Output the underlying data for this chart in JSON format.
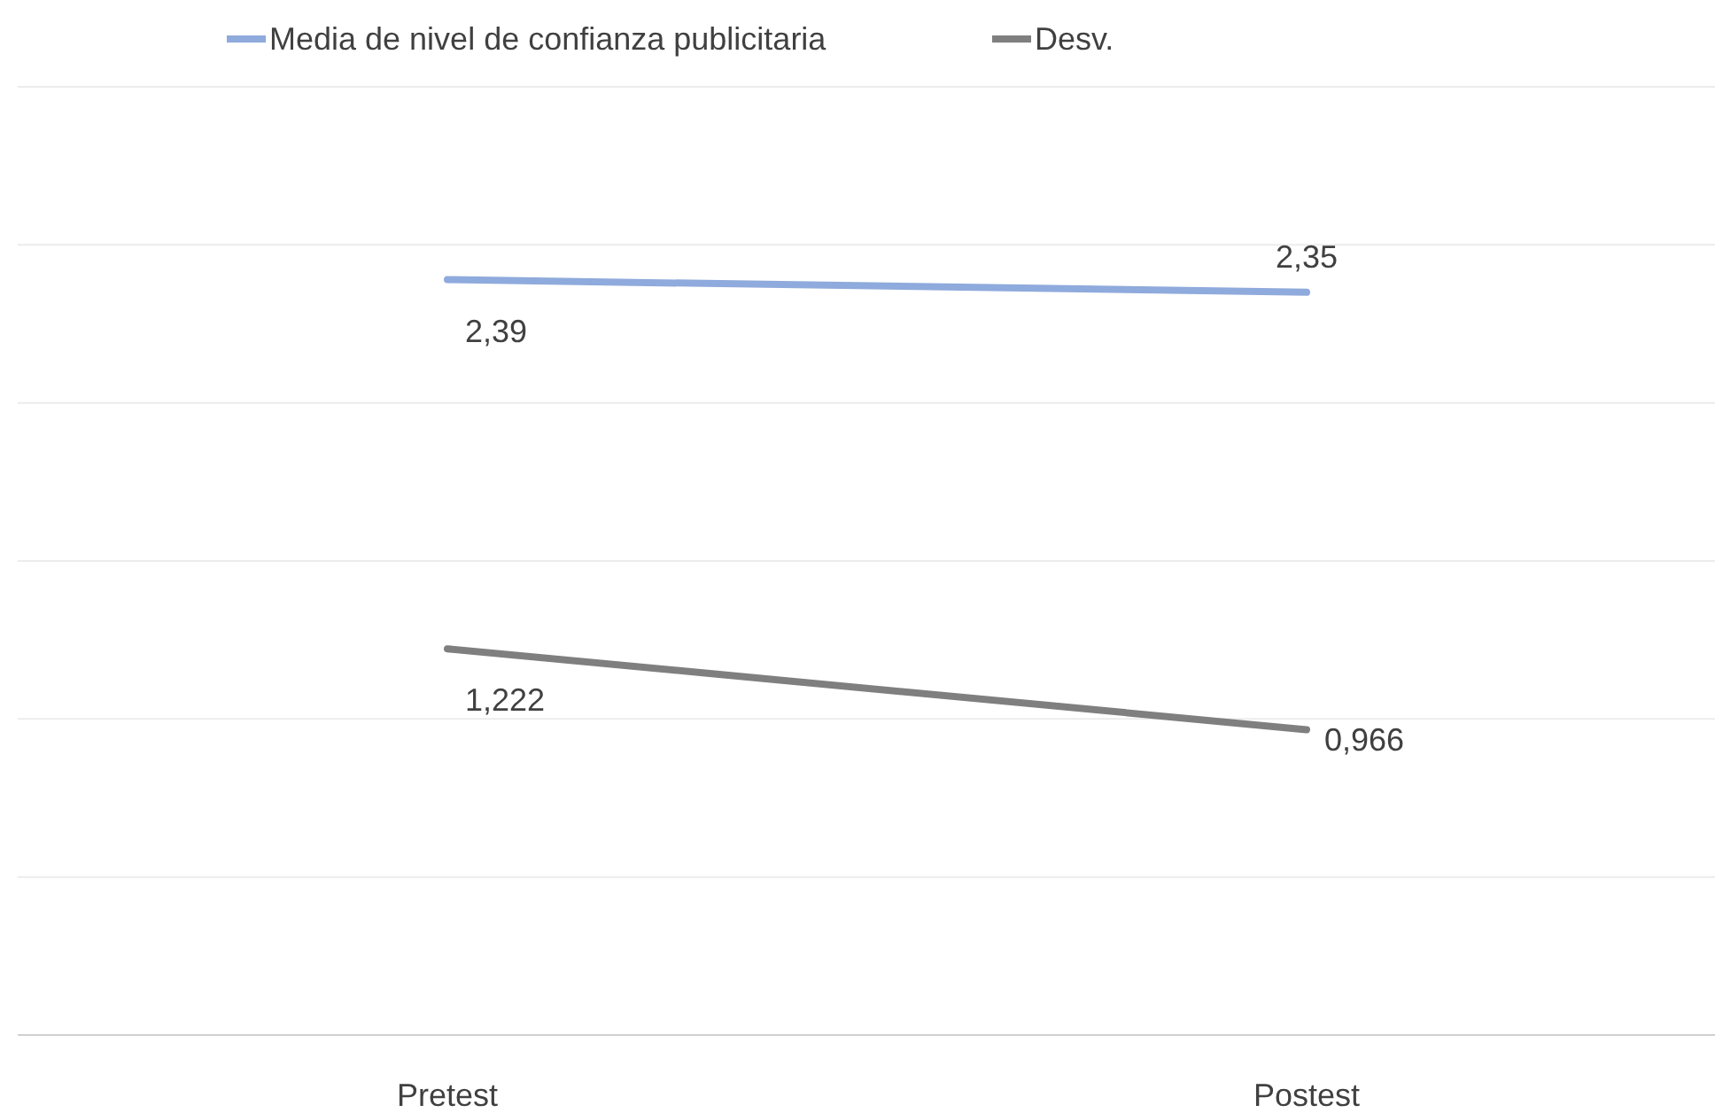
{
  "chart_data": {
    "type": "line",
    "categories": [
      "Pretest",
      "Postest"
    ],
    "series": [
      {
        "name": "Media de nivel de confianza publicitaria",
        "color": "#8faadc",
        "values": [
          2.39,
          2.35
        ],
        "value_labels": [
          "2,39",
          "2,35"
        ]
      },
      {
        "name": "Desv.",
        "color": "#7f7f7f",
        "values": [
          1.222,
          0.966
        ],
        "value_labels": [
          "1,222",
          "0,966"
        ]
      }
    ],
    "ylim": [
      0,
      3
    ],
    "yticks": [
      {
        "value": 0,
        "label": null
      },
      {
        "value": 0.5,
        "label": null
      },
      {
        "value": 1,
        "label": null
      },
      {
        "value": 1.5,
        "label": null
      },
      {
        "value": 2,
        "label": null
      },
      {
        "value": 2.5,
        "label": null
      },
      {
        "value": 3,
        "label": null
      }
    ],
    "grid": "y",
    "legend": "top left",
    "tick_labels": "x",
    "marker": "none",
    "line_style": "solid"
  }
}
